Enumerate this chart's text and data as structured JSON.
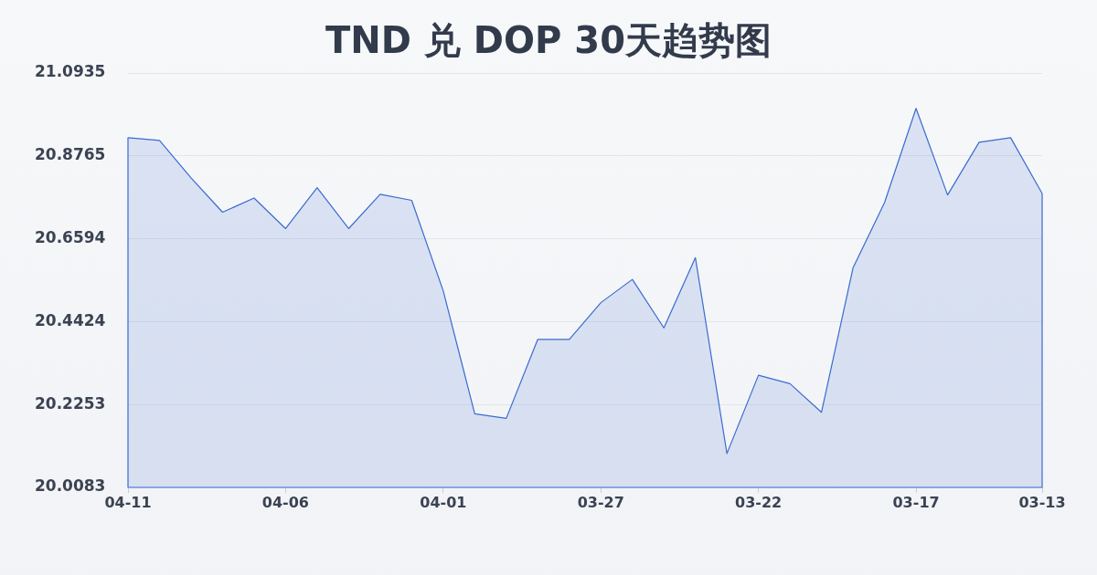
{
  "chart_data": {
    "type": "area",
    "title": "TND 兑 DOP 30天趋势图",
    "categories": [
      "04-11",
      null,
      null,
      null,
      null,
      "04-06",
      null,
      null,
      null,
      null,
      "04-01",
      null,
      null,
      null,
      null,
      "03-27",
      null,
      null,
      null,
      null,
      "03-22",
      null,
      null,
      null,
      null,
      "03-17",
      null,
      null,
      null,
      "03-13"
    ],
    "series": [
      {
        "color": "#3a6bd0",
        "values": [
          20.924,
          20.917,
          20.819,
          20.729,
          20.766,
          20.686,
          20.793,
          20.686,
          20.776,
          20.76,
          20.523,
          20.201,
          20.189,
          20.396,
          20.396,
          20.492,
          20.553,
          20.426,
          20.61,
          20.097,
          20.302,
          20.28,
          20.205,
          20.583,
          20.754,
          21.001,
          20.774,
          20.912,
          20.924,
          20.778
        ]
      }
    ],
    "ylim": [
      20.0083,
      21.0935
    ],
    "yticks": [
      20.0083,
      20.2253,
      20.4424,
      20.6594,
      20.8765,
      21.0935
    ],
    "grid": "y",
    "marker": "none"
  }
}
